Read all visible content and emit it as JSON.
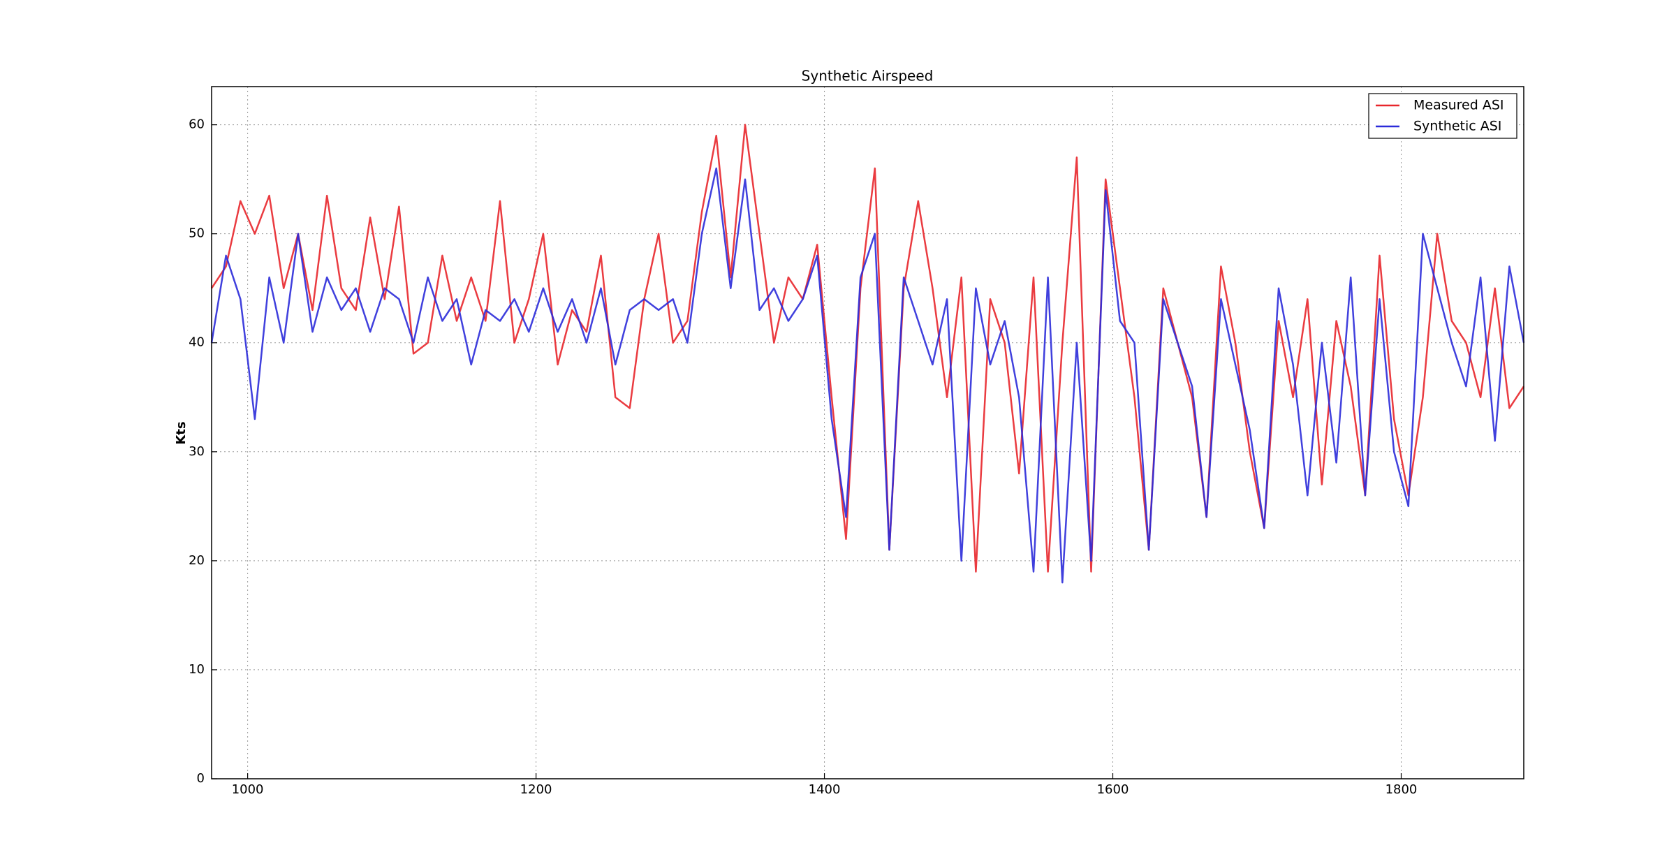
{
  "chart_data": {
    "type": "line",
    "title": "Synthetic Airspeed",
    "y_label": "Kts",
    "x": [
      975,
      985,
      995,
      1005,
      1015,
      1025,
      1035,
      1045,
      1055,
      1065,
      1075,
      1085,
      1095,
      1105,
      1115,
      1125,
      1135,
      1145,
      1155,
      1165,
      1175,
      1185,
      1195,
      1205,
      1215,
      1225,
      1235,
      1245,
      1255,
      1265,
      1275,
      1285,
      1295,
      1305,
      1315,
      1325,
      1335,
      1345,
      1355,
      1365,
      1375,
      1385,
      1395,
      1405,
      1415,
      1425,
      1435,
      1445,
      1455,
      1465,
      1475,
      1485,
      1495,
      1505,
      1515,
      1525,
      1535,
      1545,
      1555,
      1565,
      1575,
      1585,
      1595,
      1605,
      1615,
      1625,
      1635,
      1645,
      1655,
      1665,
      1675,
      1685,
      1695,
      1705,
      1715,
      1725,
      1735,
      1745,
      1755,
      1765,
      1775,
      1785,
      1795,
      1805,
      1815,
      1825,
      1835,
      1845,
      1855,
      1865,
      1875,
      1885
    ],
    "series": [
      {
        "name": "Measured ASI",
        "color": "#e8262b",
        "values": [
          45,
          47,
          53,
          50,
          53.5,
          45,
          50,
          43,
          53.5,
          45,
          43,
          51.5,
          44,
          52.5,
          39,
          40,
          48,
          42,
          46,
          42,
          53,
          40,
          44,
          50,
          38,
          43,
          41,
          48,
          35,
          34,
          44,
          50,
          40,
          42,
          52,
          59,
          46,
          60,
          50,
          40,
          46,
          44,
          49,
          35,
          22,
          45,
          56,
          21,
          45,
          53,
          45,
          35,
          46,
          19,
          44,
          40,
          28,
          46,
          19,
          40,
          57,
          19,
          55,
          45,
          35,
          21,
          45,
          40,
          35,
          24,
          47,
          40,
          30,
          23,
          42,
          35,
          44,
          27,
          42,
          36,
          26,
          48,
          33,
          26,
          35,
          50,
          42,
          40,
          35,
          45,
          34,
          36
        ]
      },
      {
        "name": "Synthetic ASI",
        "color": "#2b2bd9",
        "values": [
          40,
          48,
          44,
          33,
          46,
          40,
          50,
          41,
          46,
          43,
          45,
          41,
          45,
          44,
          40,
          46,
          42,
          44,
          38,
          43,
          42,
          44,
          41,
          45,
          41,
          44,
          40,
          45,
          38,
          43,
          44,
          43,
          44,
          40,
          50,
          56,
          45,
          55,
          43,
          45,
          42,
          44,
          48,
          33,
          24,
          46,
          50,
          21,
          46,
          42,
          38,
          44,
          20,
          45,
          38,
          42,
          35,
          19,
          46,
          18,
          40,
          20,
          54,
          42,
          40,
          21,
          44,
          40,
          36,
          24,
          44,
          38,
          32,
          23,
          45,
          38,
          26,
          40,
          29,
          46,
          26,
          44,
          30,
          25,
          50,
          45,
          40,
          36,
          46,
          31,
          47,
          40
        ]
      }
    ],
    "xlim": [
      975,
      1885
    ],
    "ylim": [
      0,
      63.5
    ],
    "xticks": [
      1000,
      1200,
      1400,
      1600,
      1800
    ],
    "yticks": [
      0,
      10,
      20,
      30,
      40,
      50,
      60
    ],
    "grid": true,
    "legend": "upper right"
  }
}
